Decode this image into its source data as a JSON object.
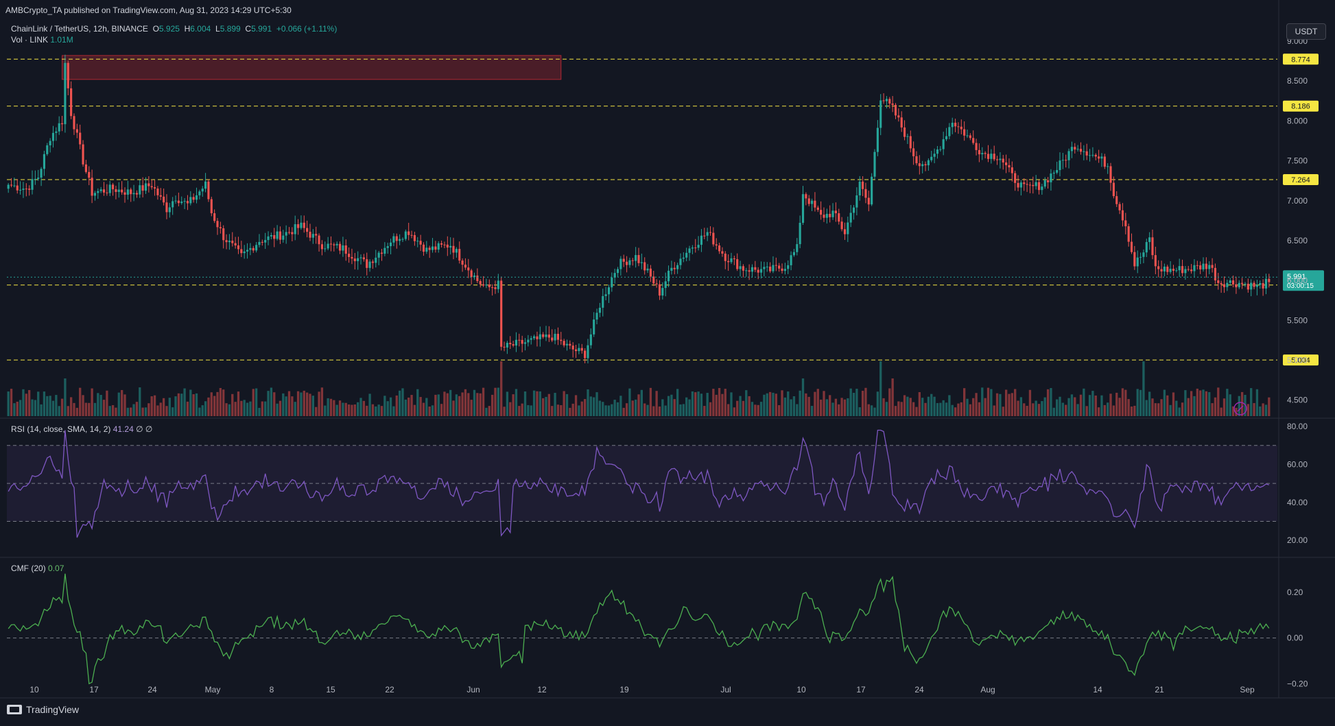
{
  "publisher_line": "AMBCrypto_TA published on TradingView.com, Aug 31, 2023 14:29 UTC+5:30",
  "symbol": {
    "name": "ChainLink / TetherUS, 12h, BINANCE",
    "open_label": "O",
    "open": "5.925",
    "high_label": "H",
    "high": "6.004",
    "low_label": "L",
    "low": "5.899",
    "close_label": "C",
    "close": "5.991",
    "change": "+0.066 (+1.11%)"
  },
  "volume_label": {
    "name": "Vol · LINK",
    "value": "1.01M"
  },
  "currency_button": "USDT",
  "rsi_label": {
    "name": "RSI (14, close, SMA, 14, 2)",
    "value": "41.24",
    "extra": "∅ ∅"
  },
  "cmf_label": {
    "name": "CMF (20)",
    "value": "0.07"
  },
  "brand": "TradingView",
  "colors": {
    "bg": "#131722",
    "up": "#26a69a",
    "down": "#ef5350",
    "level": "#f5e642",
    "rsi": "#7e57c2",
    "cmf": "#4caf50"
  },
  "chart_data": {
    "type": "candlestick",
    "price_axis": {
      "ylim": [
        4.3,
        9.0
      ],
      "ticks": [
        "9.000",
        "8.500",
        "8.000",
        "7.500",
        "7.000",
        "6.500",
        "6.000",
        "5.500",
        "5.000",
        "4.500"
      ]
    },
    "x_ticks": [
      "10",
      "17",
      "24",
      "May",
      "8",
      "15",
      "22",
      "Jun",
      "12",
      "19",
      "Jul",
      "10",
      "17",
      "24",
      "Aug",
      "14",
      "21",
      "Sep"
    ],
    "levels": [
      {
        "value": 8.774,
        "label": "8.774"
      },
      {
        "value": 8.186,
        "label": "8.186"
      },
      {
        "value": 7.264,
        "label": "7.264"
      },
      {
        "value": 5.943,
        "label": "5.943"
      },
      {
        "value": 5.004,
        "label": "5.004"
      }
    ],
    "supply_zone": {
      "top": 8.82,
      "bottom": 8.52,
      "from_index": 18,
      "to_index": 185
    },
    "last_price": {
      "value": 5.991,
      "label": "5.991",
      "countdown": "03:00:15"
    },
    "price_anchors": [
      [
        0,
        7.2
      ],
      [
        6,
        7.15
      ],
      [
        10,
        7.3
      ],
      [
        14,
        7.8
      ],
      [
        18,
        8.0
      ],
      [
        19,
        8.72
      ],
      [
        21,
        8.1
      ],
      [
        25,
        7.5
      ],
      [
        28,
        7.1
      ],
      [
        35,
        7.15
      ],
      [
        41,
        7.1
      ],
      [
        48,
        7.2
      ],
      [
        53,
        6.9
      ],
      [
        56,
        7.05
      ],
      [
        60,
        6.95
      ],
      [
        66,
        7.2
      ],
      [
        68,
        6.85
      ],
      [
        72,
        6.55
      ],
      [
        78,
        6.3
      ],
      [
        84,
        6.5
      ],
      [
        92,
        6.58
      ],
      [
        98,
        6.68
      ],
      [
        105,
        6.45
      ],
      [
        112,
        6.4
      ],
      [
        120,
        6.2
      ],
      [
        128,
        6.5
      ],
      [
        134,
        6.62
      ],
      [
        140,
        6.38
      ],
      [
        148,
        6.45
      ],
      [
        153,
        6.2
      ],
      [
        157,
        6.0
      ],
      [
        160,
        5.9
      ],
      [
        164,
        5.95
      ],
      [
        165,
        5.15
      ],
      [
        170,
        5.2
      ],
      [
        176,
        5.25
      ],
      [
        182,
        5.3
      ],
      [
        188,
        5.15
      ],
      [
        193,
        5.08
      ],
      [
        198,
        5.7
      ],
      [
        204,
        6.2
      ],
      [
        210,
        6.3
      ],
      [
        214,
        6.1
      ],
      [
        218,
        5.85
      ],
      [
        222,
        6.15
      ],
      [
        228,
        6.4
      ],
      [
        234,
        6.6
      ],
      [
        240,
        6.3
      ],
      [
        246,
        6.15
      ],
      [
        254,
        6.12
      ],
      [
        260,
        6.18
      ],
      [
        264,
        6.4
      ],
      [
        266,
        7.1
      ],
      [
        272,
        6.8
      ],
      [
        276,
        6.85
      ],
      [
        280,
        6.6
      ],
      [
        285,
        7.2
      ],
      [
        288,
        6.95
      ],
      [
        292,
        8.3
      ],
      [
        296,
        8.15
      ],
      [
        300,
        7.85
      ],
      [
        304,
        7.5
      ],
      [
        308,
        7.45
      ],
      [
        312,
        7.7
      ],
      [
        316,
        8.0
      ],
      [
        320,
        7.85
      ],
      [
        326,
        7.6
      ],
      [
        332,
        7.55
      ],
      [
        336,
        7.3
      ],
      [
        340,
        7.15
      ],
      [
        346,
        7.2
      ],
      [
        352,
        7.45
      ],
      [
        357,
        7.7
      ],
      [
        362,
        7.6
      ],
      [
        368,
        7.45
      ],
      [
        370,
        7.1
      ],
      [
        374,
        6.7
      ],
      [
        377,
        6.2
      ],
      [
        380,
        6.35
      ],
      [
        382,
        6.52
      ],
      [
        384,
        6.15
      ],
      [
        390,
        6.13
      ],
      [
        396,
        6.15
      ],
      [
        402,
        6.2
      ],
      [
        405,
        5.98
      ],
      [
        412,
        5.97
      ],
      [
        418,
        5.92
      ],
      [
        422,
        5.98
      ]
    ],
    "rsi": {
      "ylim": [
        15,
        80
      ],
      "ticks": [
        "80.00",
        "60.00",
        "40.00",
        "20.00"
      ],
      "band": [
        30,
        70
      ],
      "mid": 50
    },
    "cmf": {
      "ylim": [
        -0.25,
        0.35
      ],
      "ticks": [
        "0.20",
        "0.00",
        "−0.20"
      ],
      "zero": 0
    }
  }
}
